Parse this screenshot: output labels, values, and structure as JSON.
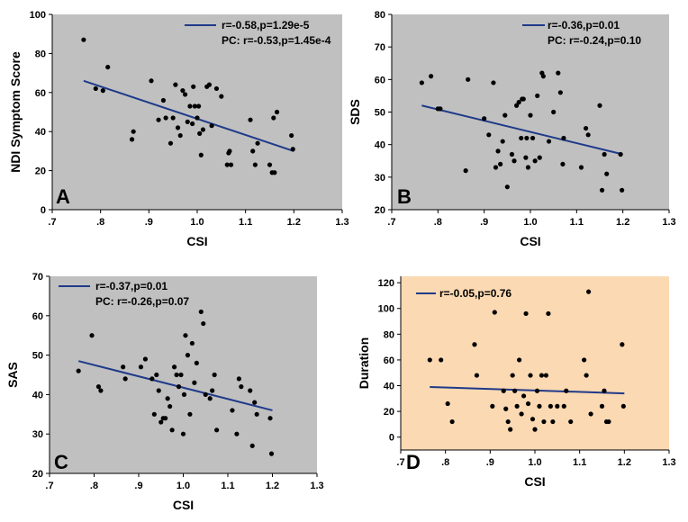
{
  "chart_data": [
    {
      "type": "scatter",
      "panel_label": "A",
      "xlabel": "CSI",
      "ylabel": "NDI Symptom Score",
      "xlim": [
        0.7,
        1.3
      ],
      "ylim": [
        0,
        100
      ],
      "xticks": [
        ".7",
        ".8",
        ".9",
        "1.0",
        "1.1",
        "1.2",
        "1.3"
      ],
      "yticks": [
        "0",
        "20",
        "40",
        "60",
        "80",
        "100"
      ],
      "background": "#c0c0c0",
      "legend_line": "r=-0.58,p=1.29e-5",
      "legend_extra": "PC: r=-0.53,p=1.45e-4",
      "trend": {
        "x1": 0.765,
        "y1": 66,
        "x2": 1.2,
        "y2": 30
      },
      "points": [
        [
          0.765,
          87
        ],
        [
          0.79,
          62
        ],
        [
          0.805,
          61
        ],
        [
          0.815,
          73
        ],
        [
          0.865,
          36
        ],
        [
          0.868,
          40
        ],
        [
          0.905,
          66
        ],
        [
          0.92,
          46
        ],
        [
          0.93,
          56
        ],
        [
          0.935,
          47
        ],
        [
          0.945,
          34
        ],
        [
          0.95,
          47
        ],
        [
          0.955,
          64
        ],
        [
          0.96,
          42
        ],
        [
          0.965,
          38
        ],
        [
          0.97,
          61
        ],
        [
          0.975,
          59
        ],
        [
          0.98,
          45
        ],
        [
          0.985,
          53
        ],
        [
          0.99,
          44
        ],
        [
          0.992,
          63
        ],
        [
          0.995,
          53
        ],
        [
          1.0,
          47
        ],
        [
          1.003,
          53
        ],
        [
          1.005,
          39
        ],
        [
          1.008,
          28
        ],
        [
          1.012,
          41
        ],
        [
          1.02,
          63
        ],
        [
          1.025,
          64
        ],
        [
          1.03,
          43
        ],
        [
          1.04,
          62
        ],
        [
          1.05,
          58
        ],
        [
          1.062,
          23
        ],
        [
          1.065,
          29
        ],
        [
          1.067,
          30
        ],
        [
          1.07,
          23
        ],
        [
          1.11,
          46
        ],
        [
          1.115,
          30
        ],
        [
          1.12,
          23
        ],
        [
          1.125,
          34
        ],
        [
          1.15,
          23
        ],
        [
          1.155,
          19
        ],
        [
          1.158,
          47
        ],
        [
          1.16,
          19
        ],
        [
          1.165,
          50
        ],
        [
          1.195,
          38
        ],
        [
          1.198,
          31
        ]
      ]
    },
    {
      "type": "scatter",
      "panel_label": "B",
      "xlabel": "CSI",
      "ylabel": "SDS",
      "xlim": [
        0.7,
        1.3
      ],
      "ylim": [
        20,
        80
      ],
      "xticks": [
        ".7",
        ".8",
        ".9",
        "1.0",
        "1.1",
        "1.2",
        "1.3"
      ],
      "yticks": [
        "20",
        "30",
        "40",
        "50",
        "60",
        "70",
        "80"
      ],
      "background": "#c0c0c0",
      "legend_line": "r=-0.36,p=0.01",
      "legend_extra": "PC: r=-0.24,p=0.10",
      "trend": {
        "x1": 0.765,
        "y1": 52,
        "x2": 1.2,
        "y2": 37
      },
      "points": [
        [
          0.765,
          59
        ],
        [
          0.785,
          61
        ],
        [
          0.8,
          51
        ],
        [
          0.805,
          51
        ],
        [
          0.86,
          32
        ],
        [
          0.865,
          60
        ],
        [
          0.9,
          48
        ],
        [
          0.91,
          43
        ],
        [
          0.92,
          59
        ],
        [
          0.925,
          33
        ],
        [
          0.93,
          38
        ],
        [
          0.935,
          34
        ],
        [
          0.94,
          41
        ],
        [
          0.945,
          49
        ],
        [
          0.95,
          27
        ],
        [
          0.96,
          37
        ],
        [
          0.965,
          35
        ],
        [
          0.97,
          52
        ],
        [
          0.975,
          53
        ],
        [
          0.98,
          42
        ],
        [
          0.982,
          54
        ],
        [
          0.985,
          54
        ],
        [
          0.99,
          36
        ],
        [
          0.992,
          42
        ],
        [
          0.995,
          33
        ],
        [
          1.0,
          49
        ],
        [
          1.005,
          42
        ],
        [
          1.01,
          35
        ],
        [
          1.015,
          55
        ],
        [
          1.02,
          36
        ],
        [
          1.025,
          62
        ],
        [
          1.028,
          61
        ],
        [
          1.04,
          41
        ],
        [
          1.05,
          50
        ],
        [
          1.06,
          62
        ],
        [
          1.065,
          56
        ],
        [
          1.07,
          34
        ],
        [
          1.072,
          42
        ],
        [
          1.11,
          33
        ],
        [
          1.12,
          45
        ],
        [
          1.125,
          43
        ],
        [
          1.15,
          52
        ],
        [
          1.155,
          26
        ],
        [
          1.16,
          37
        ],
        [
          1.165,
          31
        ],
        [
          1.195,
          37
        ],
        [
          1.198,
          26
        ]
      ]
    },
    {
      "type": "scatter",
      "panel_label": "C",
      "xlabel": "CSI",
      "ylabel": "SAS",
      "xlim": [
        0.7,
        1.3
      ],
      "ylim": [
        20,
        70
      ],
      "xticks": [
        ".7",
        ".8",
        ".9",
        "1.0",
        "1.1",
        "1.2",
        "1.3"
      ],
      "yticks": [
        "20",
        "30",
        "40",
        "50",
        "60",
        "70"
      ],
      "background": "#c0c0c0",
      "legend_line": "r=-0.37,p=0.01",
      "legend_extra": "PC: r=-0.26,p=0.07",
      "trend": {
        "x1": 0.765,
        "y1": 48.5,
        "x2": 1.2,
        "y2": 36
      },
      "points": [
        [
          0.765,
          46
        ],
        [
          0.795,
          55
        ],
        [
          0.81,
          42
        ],
        [
          0.815,
          41
        ],
        [
          0.865,
          47
        ],
        [
          0.87,
          44
        ],
        [
          0.905,
          47
        ],
        [
          0.915,
          49
        ],
        [
          0.93,
          44
        ],
        [
          0.935,
          35
        ],
        [
          0.94,
          45
        ],
        [
          0.945,
          41
        ],
        [
          0.95,
          33
        ],
        [
          0.955,
          34
        ],
        [
          0.96,
          34
        ],
        [
          0.965,
          39
        ],
        [
          0.97,
          37
        ],
        [
          0.975,
          31
        ],
        [
          0.98,
          47
        ],
        [
          0.985,
          45
        ],
        [
          0.99,
          42
        ],
        [
          0.995,
          45
        ],
        [
          1.0,
          30
        ],
        [
          1.002,
          40
        ],
        [
          1.005,
          55
        ],
        [
          1.01,
          50
        ],
        [
          1.015,
          35
        ],
        [
          1.02,
          53
        ],
        [
          1.025,
          43
        ],
        [
          1.03,
          48
        ],
        [
          1.04,
          61
        ],
        [
          1.045,
          58
        ],
        [
          1.05,
          40
        ],
        [
          1.06,
          39
        ],
        [
          1.065,
          41
        ],
        [
          1.07,
          45
        ],
        [
          1.075,
          31
        ],
        [
          1.11,
          36
        ],
        [
          1.12,
          30
        ],
        [
          1.125,
          44
        ],
        [
          1.13,
          42
        ],
        [
          1.15,
          41
        ],
        [
          1.155,
          27
        ],
        [
          1.16,
          38
        ],
        [
          1.165,
          35
        ],
        [
          1.195,
          34
        ],
        [
          1.198,
          25
        ]
      ]
    },
    {
      "type": "scatter",
      "panel_label": "D",
      "xlabel": "CSI",
      "ylabel": "Duration",
      "xlim": [
        0.7,
        1.3
      ],
      "ylim": [
        -10,
        125
      ],
      "xticks": [
        ".7",
        ".8",
        ".9",
        "1.0",
        "1.1",
        "1.2",
        "1.3"
      ],
      "yticks": [
        "0",
        "20",
        "40",
        "60",
        "80",
        "100",
        "120"
      ],
      "background": "#fbd9b2",
      "legend_line": "r=-0.05,p=0.76",
      "legend_extra": "",
      "trend": {
        "x1": 0.765,
        "y1": 39,
        "x2": 1.2,
        "y2": 34
      },
      "points": [
        [
          0.765,
          60
        ],
        [
          0.79,
          60
        ],
        [
          0.805,
          26
        ],
        [
          0.815,
          12
        ],
        [
          0.865,
          72
        ],
        [
          0.87,
          48
        ],
        [
          0.905,
          24
        ],
        [
          0.91,
          97
        ],
        [
          0.93,
          36
        ],
        [
          0.935,
          22
        ],
        [
          0.94,
          12
        ],
        [
          0.945,
          6
        ],
        [
          0.95,
          48
        ],
        [
          0.955,
          36
        ],
        [
          0.96,
          24
        ],
        [
          0.965,
          60
        ],
        [
          0.97,
          18
        ],
        [
          0.975,
          32
        ],
        [
          0.98,
          96
        ],
        [
          0.985,
          26
        ],
        [
          0.99,
          48
        ],
        [
          0.995,
          14
        ],
        [
          1.0,
          6
        ],
        [
          1.005,
          36
        ],
        [
          1.01,
          24
        ],
        [
          1.015,
          48
        ],
        [
          1.02,
          12
        ],
        [
          1.025,
          48
        ],
        [
          1.03,
          96
        ],
        [
          1.035,
          24
        ],
        [
          1.04,
          12
        ],
        [
          1.05,
          24
        ],
        [
          1.065,
          24
        ],
        [
          1.07,
          36
        ],
        [
          1.08,
          12
        ],
        [
          1.11,
          60
        ],
        [
          1.115,
          48
        ],
        [
          1.12,
          113
        ],
        [
          1.125,
          18
        ],
        [
          1.15,
          24
        ],
        [
          1.155,
          36
        ],
        [
          1.16,
          12
        ],
        [
          1.165,
          12
        ],
        [
          1.195,
          72
        ],
        [
          1.198,
          24
        ]
      ]
    }
  ],
  "colors": {
    "gray_bg": "#c0c0c0",
    "peach_bg": "#fbd9b2",
    "trend_line": "#1f3a8a",
    "points": "#000000"
  }
}
